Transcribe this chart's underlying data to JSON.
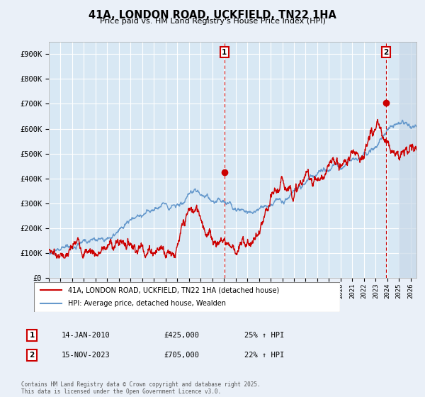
{
  "title": "41A, LONDON ROAD, UCKFIELD, TN22 1HA",
  "subtitle": "Price paid vs. HM Land Registry's House Price Index (HPI)",
  "ylim": [
    0,
    950000
  ],
  "yticks": [
    0,
    100000,
    200000,
    300000,
    400000,
    500000,
    600000,
    700000,
    800000,
    900000
  ],
  "ytick_labels": [
    "£0",
    "£100K",
    "£200K",
    "£300K",
    "£400K",
    "£500K",
    "£600K",
    "£700K",
    "£800K",
    "£900K"
  ],
  "background_color": "#eaf0f8",
  "plot_bg_color": "#d8e8f4",
  "grid_color": "#ffffff",
  "red_color": "#cc0000",
  "blue_color": "#6699cc",
  "hatch_color": "#c8d8e8",
  "marker1_date": 2010.04,
  "marker1_value": 425000,
  "marker2_date": 2023.88,
  "marker2_value": 705000,
  "legend_entry1": "41A, LONDON ROAD, UCKFIELD, TN22 1HA (detached house)",
  "legend_entry2": "HPI: Average price, detached house, Wealden",
  "annotation1": [
    "1",
    "14-JAN-2010",
    "£425,000",
    "25% ↑ HPI"
  ],
  "annotation2": [
    "2",
    "15-NOV-2023",
    "£705,000",
    "22% ↑ HPI"
  ],
  "footer": "Contains HM Land Registry data © Crown copyright and database right 2025.\nThis data is licensed under the Open Government Licence v3.0.",
  "vline1_x": 2010.04,
  "vline2_x": 2023.88,
  "xlim_start": 1995,
  "xlim_end": 2026.5,
  "hatch_start": 2025.0
}
